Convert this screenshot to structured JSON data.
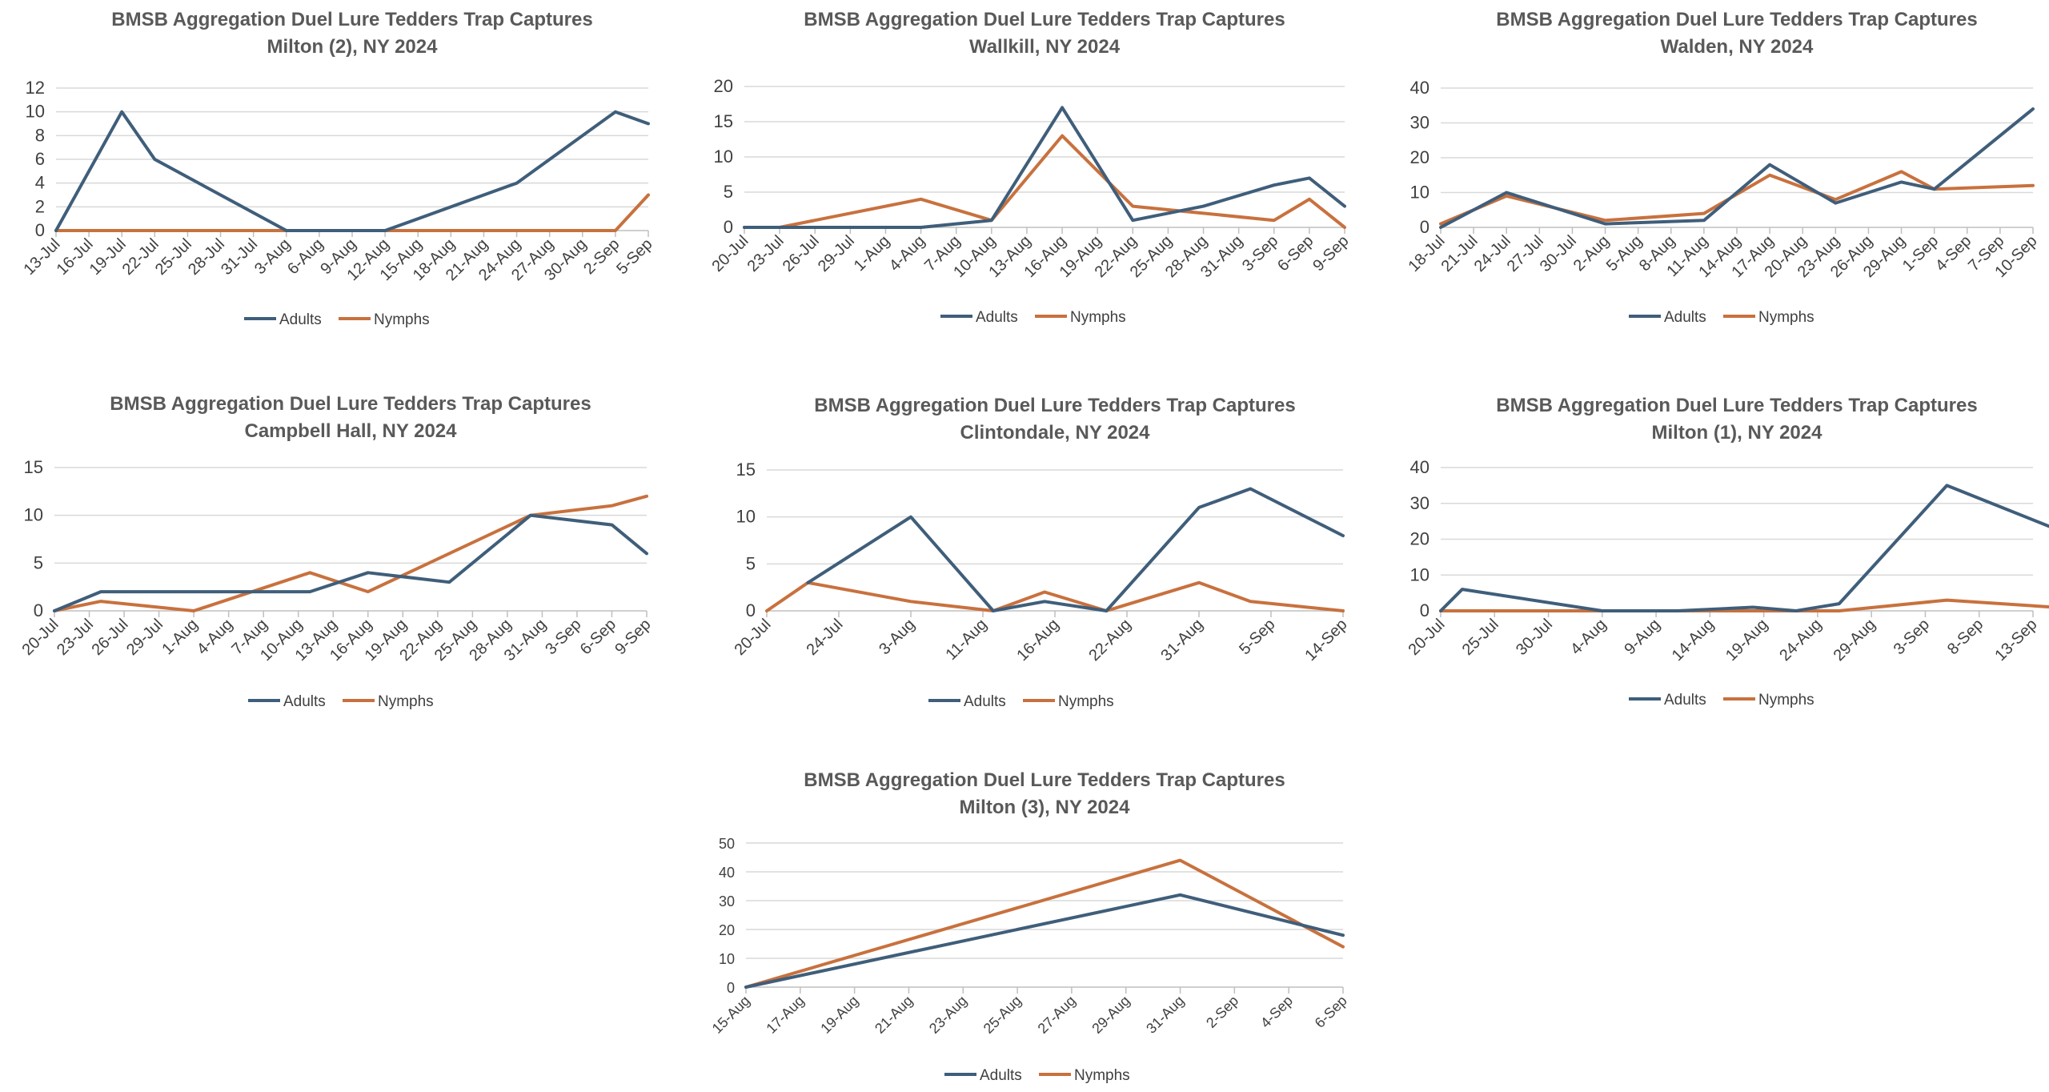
{
  "colors": {
    "adults": "#3f5e7a",
    "nymphs": "#c8713e",
    "grid": "#d9d9d9",
    "axis": "#bfbfbf",
    "title": "#595959",
    "tick": "#404040"
  },
  "legend": {
    "adults": "Adults",
    "nymphs": "Nymphs"
  },
  "chart_data": [
    {
      "type": "line",
      "title": "BMSB Aggregation Duel Lure Tedders Trap Captures",
      "subtitle": "Milton (2), NY 2024",
      "ylim": [
        0,
        12
      ],
      "yticks": [
        0,
        2,
        4,
        6,
        8,
        10,
        12
      ],
      "categories": [
        "13-Jul",
        "16-Jul",
        "19-Jul",
        "22-Jul",
        "25-Jul",
        "28-Jul",
        "31-Jul",
        "3-Aug",
        "6-Aug",
        "9-Aug",
        "12-Aug",
        "15-Aug",
        "18-Aug",
        "21-Aug",
        "24-Aug",
        "27-Aug",
        "30-Aug",
        "2-Sep",
        "5-Sep"
      ],
      "series": [
        {
          "name": "Adults",
          "points": [
            [
              "13-Jul",
              0
            ],
            [
              "19-Jul",
              10
            ],
            [
              "22-Jul",
              6
            ],
            [
              "3-Aug",
              0
            ],
            [
              "12-Aug",
              0
            ],
            [
              "15-Aug",
              1
            ],
            [
              "24-Aug",
              4
            ],
            [
              "2-Sep",
              10
            ],
            [
              "5-Sep",
              9
            ]
          ]
        },
        {
          "name": "Nymphs",
          "points": [
            [
              "13-Jul",
              0
            ],
            [
              "30-Aug",
              0
            ],
            [
              "2-Sep",
              0
            ],
            [
              "5-Sep",
              3
            ]
          ]
        }
      ]
    },
    {
      "type": "line",
      "title": "BMSB Aggregation Duel Lure Tedders Trap Captures",
      "subtitle": "Wallkill, NY 2024",
      "ylim": [
        0,
        20
      ],
      "yticks": [
        0,
        5,
        10,
        15,
        20
      ],
      "categories": [
        "20-Jul",
        "23-Jul",
        "26-Jul",
        "29-Jul",
        "1-Aug",
        "4-Aug",
        "7-Aug",
        "10-Aug",
        "13-Aug",
        "16-Aug",
        "19-Aug",
        "22-Aug",
        "25-Aug",
        "28-Aug",
        "31-Aug",
        "3-Sep",
        "6-Sep",
        "9-Sep"
      ],
      "series": [
        {
          "name": "Adults",
          "points": [
            [
              "20-Jul",
              0
            ],
            [
              "23-Jul",
              0
            ],
            [
              "4-Aug",
              0
            ],
            [
              "10-Aug",
              1
            ],
            [
              "16-Aug",
              17
            ],
            [
              "22-Aug",
              1
            ],
            [
              "28-Aug",
              3
            ],
            [
              "3-Sep",
              6
            ],
            [
              "6-Sep",
              7
            ],
            [
              "9-Sep",
              3
            ]
          ]
        },
        {
          "name": "Nymphs",
          "points": [
            [
              "20-Jul",
              0
            ],
            [
              "23-Jul",
              0
            ],
            [
              "4-Aug",
              4
            ],
            [
              "10-Aug",
              1
            ],
            [
              "16-Aug",
              13
            ],
            [
              "22-Aug",
              3
            ],
            [
              "28-Aug",
              2
            ],
            [
              "3-Sep",
              1
            ],
            [
              "6-Sep",
              4
            ],
            [
              "9-Sep",
              0
            ]
          ]
        }
      ]
    },
    {
      "type": "line",
      "title": "BMSB Aggregation Duel Lure Tedders Trap Captures",
      "subtitle": "Walden, NY 2024",
      "ylim": [
        0,
        40
      ],
      "yticks": [
        0,
        10,
        20,
        30,
        40
      ],
      "categories": [
        "18-Jul",
        "21-Jul",
        "24-Jul",
        "27-Jul",
        "30-Jul",
        "2-Aug",
        "5-Aug",
        "8-Aug",
        "11-Aug",
        "14-Aug",
        "17-Aug",
        "20-Aug",
        "23-Aug",
        "26-Aug",
        "29-Aug",
        "1-Sep",
        "4-Sep",
        "7-Sep",
        "10-Sep"
      ],
      "series": [
        {
          "name": "Adults",
          "points": [
            [
              "18-Jul",
              0
            ],
            [
              "24-Jul",
              10
            ],
            [
              "2-Aug",
              1
            ],
            [
              "11-Aug",
              2
            ],
            [
              "17-Aug",
              18
            ],
            [
              "23-Aug",
              7
            ],
            [
              "29-Aug",
              13
            ],
            [
              "1-Sep",
              11
            ],
            [
              "10-Sep",
              34
            ]
          ]
        },
        {
          "name": "Nymphs",
          "points": [
            [
              "18-Jul",
              1
            ],
            [
              "24-Jul",
              9
            ],
            [
              "2-Aug",
              2
            ],
            [
              "11-Aug",
              4
            ],
            [
              "17-Aug",
              15
            ],
            [
              "23-Aug",
              8
            ],
            [
              "29-Aug",
              16
            ],
            [
              "1-Sep",
              11
            ],
            [
              "10-Sep",
              12
            ]
          ]
        }
      ]
    },
    {
      "type": "line",
      "title": "BMSB Aggregation Duel Lure Tedders Trap Captures",
      "subtitle": "Campbell Hall, NY 2024",
      "ylim": [
        0,
        15
      ],
      "yticks": [
        0,
        5,
        10,
        15
      ],
      "categories": [
        "20-Jul",
        "23-Jul",
        "26-Jul",
        "29-Jul",
        "1-Aug",
        "4-Aug",
        "7-Aug",
        "10-Aug",
        "13-Aug",
        "16-Aug",
        "19-Aug",
        "22-Aug",
        "25-Aug",
        "28-Aug",
        "31-Aug",
        "3-Sep",
        "6-Sep",
        "9-Sep"
      ],
      "series": [
        {
          "name": "Adults",
          "points": [
            [
              "20-Jul",
              0
            ],
            [
              "24-Jul",
              2
            ],
            [
              "11-Aug",
              2
            ],
            [
              "16-Aug",
              4
            ],
            [
              "23-Aug",
              3
            ],
            [
              "30-Aug",
              10
            ],
            [
              "6-Sep",
              9
            ],
            [
              "9-Sep",
              6
            ]
          ]
        },
        {
          "name": "Nymphs",
          "points": [
            [
              "20-Jul",
              0
            ],
            [
              "24-Jul",
              1
            ],
            [
              "1-Aug",
              0
            ],
            [
              "11-Aug",
              4
            ],
            [
              "16-Aug",
              2
            ],
            [
              "30-Aug",
              10
            ],
            [
              "6-Sep",
              11
            ],
            [
              "9-Sep",
              12
            ]
          ]
        }
      ]
    },
    {
      "type": "line",
      "title": "BMSB Aggregation Duel Lure Tedders Trap Captures",
      "subtitle": "Clintondale, NY 2024",
      "ylim": [
        0,
        15
      ],
      "yticks": [
        0,
        5,
        10,
        15
      ],
      "categories": [
        "20-Jul",
        "24-Jul",
        "3-Aug",
        "11-Aug",
        "16-Aug",
        "22-Aug",
        "31-Aug",
        "5-Sep",
        "14-Sep"
      ],
      "series": [
        {
          "name": "Adults",
          "points": [
            [
              "24-Jul",
              3
            ],
            [
              "3-Aug",
              10
            ],
            [
              "11-Aug",
              0
            ],
            [
              "16-Aug",
              1
            ],
            [
              "22-Aug",
              0
            ],
            [
              "31-Aug",
              11
            ],
            [
              "5-Sep",
              13
            ],
            [
              "14-Sep",
              8
            ]
          ]
        },
        {
          "name": "Nymphs",
          "points": [
            [
              "20-Jul",
              0
            ],
            [
              "24-Jul",
              3
            ],
            [
              "3-Aug",
              1
            ],
            [
              "11-Aug",
              0
            ],
            [
              "16-Aug",
              2
            ],
            [
              "22-Aug",
              0
            ],
            [
              "31-Aug",
              3
            ],
            [
              "5-Sep",
              1
            ],
            [
              "14-Sep",
              0
            ]
          ]
        }
      ]
    },
    {
      "type": "line",
      "title": "BMSB Aggregation Duel Lure Tedders Trap Captures",
      "subtitle": "Milton (1), NY 2024",
      "ylim": [
        0,
        40
      ],
      "yticks": [
        0,
        10,
        20,
        30,
        40
      ],
      "categories": [
        "20-Jul",
        "25-Jul",
        "30-Jul",
        "4-Aug",
        "9-Aug",
        "14-Aug",
        "19-Aug",
        "24-Aug",
        "29-Aug",
        "3-Sep",
        "8-Sep",
        "13-Sep"
      ],
      "series": [
        {
          "name": "Adults",
          "points": [
            [
              "20-Jul",
              0
            ],
            [
              "22-Jul",
              6
            ],
            [
              "4-Aug",
              0
            ],
            [
              "11-Aug",
              0
            ],
            [
              "18-Aug",
              1
            ],
            [
              "22-Aug",
              0
            ],
            [
              "26-Aug",
              2
            ],
            [
              "5-Sep",
              35
            ],
            [
              "15-Sep",
              23
            ]
          ]
        },
        {
          "name": "Nymphs",
          "points": [
            [
              "20-Jul",
              0
            ],
            [
              "26-Aug",
              0
            ],
            [
              "5-Sep",
              3
            ],
            [
              "15-Sep",
              1
            ]
          ]
        }
      ]
    },
    {
      "type": "line",
      "title": "BMSB Aggregation Duel Lure Tedders Trap Captures",
      "subtitle": "Milton (3), NY 2024",
      "ylim": [
        0,
        50
      ],
      "yticks": [
        0,
        10,
        20,
        30,
        40,
        50
      ],
      "categories": [
        "15-Aug",
        "17-Aug",
        "19-Aug",
        "21-Aug",
        "23-Aug",
        "25-Aug",
        "27-Aug",
        "29-Aug",
        "31-Aug",
        "2-Sep",
        "4-Sep",
        "6-Sep"
      ],
      "series": [
        {
          "name": "Adults",
          "points": [
            [
              "15-Aug",
              0
            ],
            [
              "31-Aug",
              32
            ],
            [
              "6-Sep",
              18
            ]
          ]
        },
        {
          "name": "Nymphs",
          "points": [
            [
              "15-Aug",
              0
            ],
            [
              "31-Aug",
              44
            ],
            [
              "6-Sep",
              14
            ]
          ]
        }
      ]
    }
  ]
}
